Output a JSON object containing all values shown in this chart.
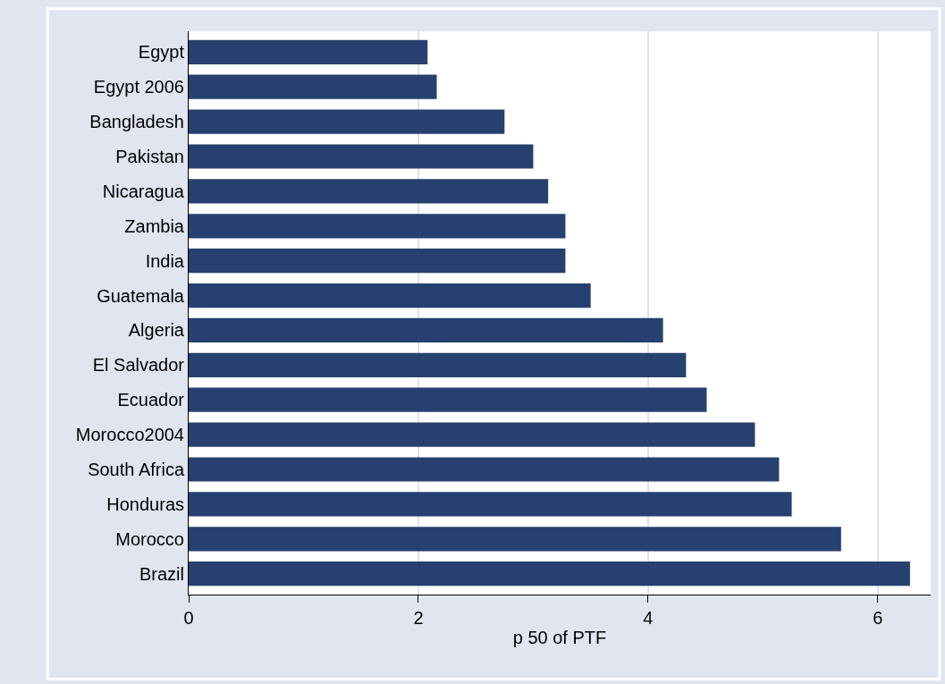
{
  "chart_data": {
    "type": "bar",
    "orientation": "horizontal",
    "xlabel": "p 50 of PTF",
    "categories": [
      "Egypt",
      "Egypt 2006",
      "Bangladesh",
      "Pakistan",
      "Nicaragua",
      "Zambia",
      "India",
      "Guatemala",
      "Algeria",
      "El Salvador",
      "Ecuador",
      "Morocco2004",
      "South Africa",
      "Honduras",
      "Morocco",
      "Brazil"
    ],
    "values": [
      2.08,
      2.16,
      2.75,
      3.0,
      3.13,
      3.28,
      3.28,
      3.5,
      4.13,
      4.33,
      4.51,
      4.93,
      5.14,
      5.25,
      5.68,
      6.28
    ],
    "color": "#26406f",
    "xlim": [
      0,
      6.46
    ],
    "xticks": [
      0,
      2,
      4,
      6
    ],
    "grid": "x"
  }
}
